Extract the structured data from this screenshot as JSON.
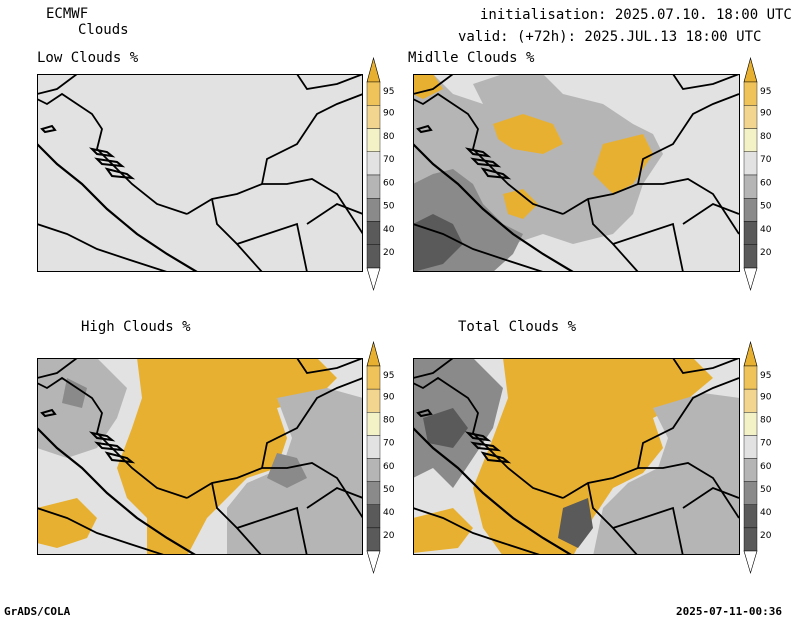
{
  "header": {
    "model": "ECMWF",
    "product": "Clouds",
    "init": "initialisation: 2025.07.10. 18:00 UTC",
    "valid": "valid: (+72h): 2025.JUL.13 18:00 UTC"
  },
  "footer": {
    "left": "GrADS/COLA",
    "right": "2025-07-11-00:36"
  },
  "colors": {
    "map_bg": "#e2e2e2",
    "border": "#000000"
  },
  "chart_data": [
    {
      "type": "heatmap",
      "title": "Low Clouds %",
      "coverage": "none"
    },
    {
      "type": "heatmap",
      "title": "Midlle Clouds %",
      "coverage": "partial"
    },
    {
      "type": "heatmap",
      "title": "High Clouds %",
      "coverage": "widespread"
    },
    {
      "type": "heatmap",
      "title": "Total Clouds %",
      "coverage": "widespread"
    }
  ],
  "colorbar": {
    "ticks": [
      "95",
      "90",
      "80",
      "70",
      "60",
      "50",
      "40",
      "20"
    ],
    "colors": [
      "#e8b030",
      "#efc35a",
      "#f2d690",
      "#f3f1c6",
      "#e2e2e2",
      "#b5b5b5",
      "#8a8a8a",
      "#5a5a5a",
      "#ffffff"
    ]
  }
}
